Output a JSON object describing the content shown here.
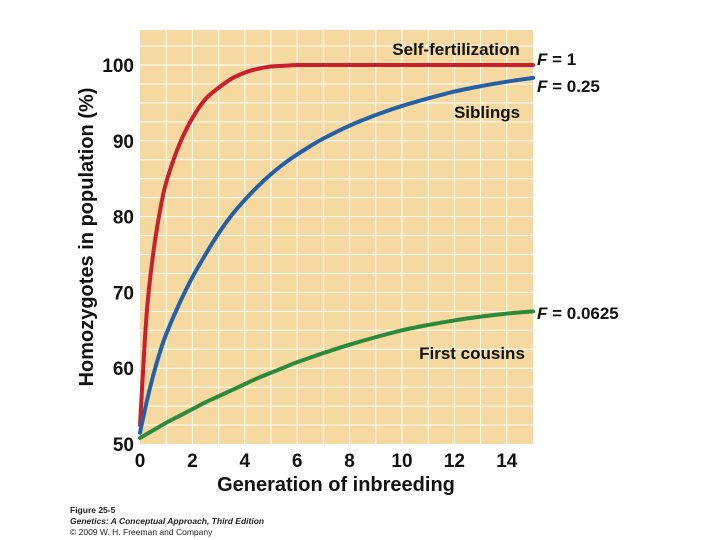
{
  "chart_data": {
    "type": "line",
    "xlabel": "Generation of inbreeding",
    "ylabel": "Homozygotes in population (%)",
    "xlim": [
      0,
      15
    ],
    "ylim": [
      50,
      105
    ],
    "x_ticks": [
      "0",
      "2",
      "4",
      "6",
      "8",
      "10",
      "12",
      "14"
    ],
    "y_ticks": [
      "50",
      "60",
      "70",
      "80",
      "90",
      "100"
    ],
    "grid": true,
    "background_color": "#f5d9a0",
    "grid_color": "#ffffff",
    "x": [
      0,
      0.25,
      0.5,
      0.75,
      1,
      1.5,
      2,
      2.5,
      3,
      3.5,
      4,
      4.5,
      5,
      5.5,
      6,
      6.5,
      7,
      8,
      9,
      10,
      11,
      12,
      13,
      14,
      15
    ],
    "series": [
      {
        "name": "Self-fertilization",
        "color": "#c8202c",
        "values": [
          52.5,
          67,
          75,
          80.5,
          84.5,
          89.5,
          93,
          95.5,
          97,
          98.2,
          99,
          99.5,
          99.8,
          99.9,
          100,
          100,
          100,
          100,
          100,
          100,
          100,
          100,
          100,
          100,
          100
        ]
      },
      {
        "name": "Siblings",
        "color": "#2360a5",
        "values": [
          51.5,
          55.5,
          59,
          62,
          64.5,
          68.5,
          72,
          75,
          77.8,
          80.2,
          82.2,
          84,
          85.6,
          87,
          88.2,
          89.3,
          90.3,
          92,
          93.4,
          94.6,
          95.6,
          96.5,
          97.2,
          97.8,
          98.3
        ]
      },
      {
        "name": "First cousins",
        "color": "#2c8a3c",
        "values": [
          50.8,
          51.3,
          51.8,
          52.3,
          52.8,
          53.7,
          54.6,
          55.5,
          56.3,
          57.1,
          57.9,
          58.7,
          59.4,
          60.1,
          60.8,
          61.4,
          62,
          63.1,
          64.1,
          65,
          65.7,
          66.3,
          66.8,
          67.2,
          67.5
        ]
      }
    ],
    "annotations": [
      {
        "series": "Self-fertilization",
        "text": "Self-fertilization"
      },
      {
        "series": "Siblings",
        "text": "Siblings"
      },
      {
        "series": "First cousins",
        "text": "First cousins"
      }
    ],
    "f_labels": [
      {
        "series": "Self-fertilization",
        "prefix": "F",
        "value": " = 1"
      },
      {
        "series": "Siblings",
        "prefix": "F",
        "value": " = 0.25"
      },
      {
        "series": "First cousins",
        "prefix": "F",
        "value": " = 0.0625"
      }
    ]
  },
  "caption": {
    "figure": "Figure 25-5",
    "book": "Genetics: A Conceptual Approach, Third Edition",
    "copyright": "© 2009 W. H. Freeman and Company"
  }
}
